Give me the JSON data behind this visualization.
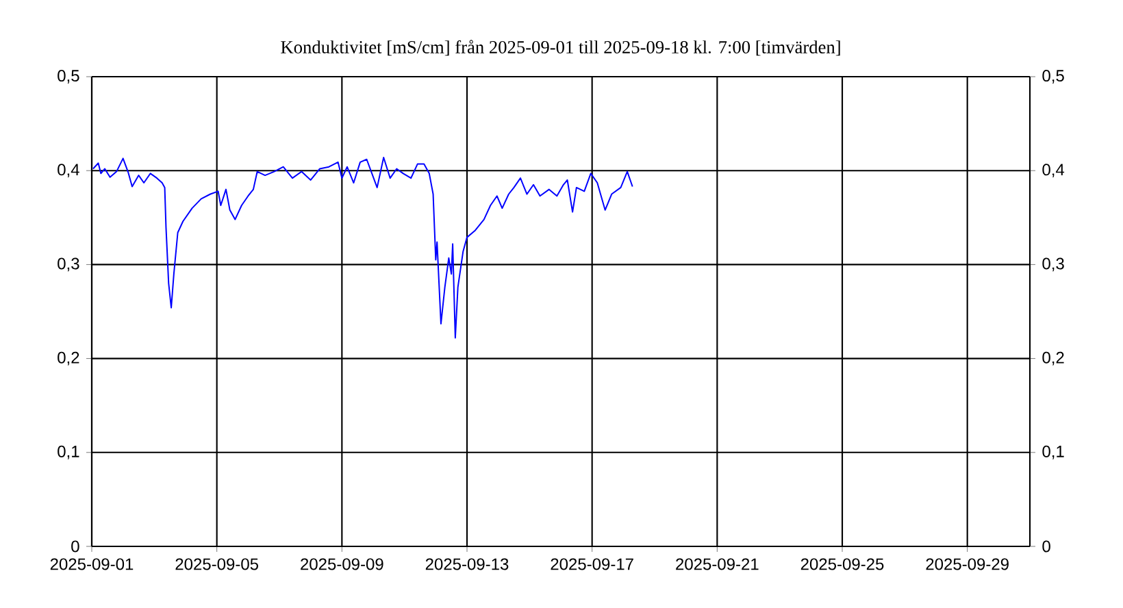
{
  "chart_data": {
    "type": "line",
    "title": "Konduktivitet [mS/cm] från 2025-09-01 till 2025-09-18 kl. 7:00 [timvärden]",
    "x": [
      "2025-09-01T01:00",
      "2025-09-01T05:00",
      "2025-09-01T07:00",
      "2025-09-01T10:00",
      "2025-09-01T14:00",
      "2025-09-01T19:00",
      "2025-09-02T00:00",
      "2025-09-02T04:00",
      "2025-09-02T07:00",
      "2025-09-02T12:00",
      "2025-09-02T16:00",
      "2025-09-02T21:00",
      "2025-09-03T02:00",
      "2025-09-03T06:00",
      "2025-09-03T08:00",
      "2025-09-03T09:00",
      "2025-09-03T11:00",
      "2025-09-03T13:00",
      "2025-09-03T15:00",
      "2025-09-03T18:00",
      "2025-09-03T22:00",
      "2025-09-04T05:00",
      "2025-09-04T12:00",
      "2025-09-04T19:00",
      "2025-09-05T01:00",
      "2025-09-05T03:00",
      "2025-09-05T07:00",
      "2025-09-05T10:00",
      "2025-09-05T14:00",
      "2025-09-05T19:00",
      "2025-09-06T00:00",
      "2025-09-06T04:00",
      "2025-09-06T07:00",
      "2025-09-06T13:00",
      "2025-09-06T20:00",
      "2025-09-07T03:00",
      "2025-09-07T10:00",
      "2025-09-07T17:00",
      "2025-09-08T00:00",
      "2025-09-08T07:00",
      "2025-09-08T14:00",
      "2025-09-08T21:00",
      "2025-09-09T00:00",
      "2025-09-09T04:00",
      "2025-09-09T09:00",
      "2025-09-09T14:00",
      "2025-09-09T19:00",
      "2025-09-10T03:00",
      "2025-09-10T08:00",
      "2025-09-10T13:00",
      "2025-09-10T18:00",
      "2025-09-10T23:00",
      "2025-09-11T05:00",
      "2025-09-11T10:00",
      "2025-09-11T15:00",
      "2025-09-11T19:00",
      "2025-09-11T22:00",
      "2025-09-12T00:00",
      "2025-09-12T01:00",
      "2025-09-12T04:00",
      "2025-09-12T07:00",
      "2025-09-12T10:00",
      "2025-09-12T12:00",
      "2025-09-12T13:00",
      "2025-09-12T15:00",
      "2025-09-12T17:00",
      "2025-09-12T21:00",
      "2025-09-13T00:00",
      "2025-09-13T06:00",
      "2025-09-13T13:00",
      "2025-09-13T18:00",
      "2025-09-13T23:00",
      "2025-09-14T03:00",
      "2025-09-14T08:00",
      "2025-09-14T12:00",
      "2025-09-14T17:00",
      "2025-09-14T22:00",
      "2025-09-15T03:00",
      "2025-09-15T08:00",
      "2025-09-15T15:00",
      "2025-09-15T21:00",
      "2025-09-16T02:00",
      "2025-09-16T05:00",
      "2025-09-16T09:00",
      "2025-09-16T12:00",
      "2025-09-16T18:00",
      "2025-09-16T23:00",
      "2025-09-17T04:00",
      "2025-09-17T10:00",
      "2025-09-17T15:00",
      "2025-09-17T22:00",
      "2025-09-18T03:00",
      "2025-09-18T07:00"
    ],
    "series": [
      {
        "color": "#0000ff",
        "values": [
          0.402,
          0.408,
          0.397,
          0.402,
          0.393,
          0.399,
          0.413,
          0.398,
          0.383,
          0.395,
          0.387,
          0.397,
          0.392,
          0.387,
          0.382,
          0.339,
          0.28,
          0.254,
          0.29,
          0.334,
          0.346,
          0.36,
          0.37,
          0.375,
          0.378,
          0.363,
          0.38,
          0.358,
          0.348,
          0.363,
          0.373,
          0.38,
          0.399,
          0.395,
          0.399,
          0.404,
          0.392,
          0.399,
          0.39,
          0.402,
          0.404,
          0.409,
          0.392,
          0.404,
          0.387,
          0.409,
          0.412,
          0.382,
          0.414,
          0.392,
          0.402,
          0.397,
          0.392,
          0.407,
          0.407,
          0.397,
          0.375,
          0.305,
          0.324,
          0.237,
          0.276,
          0.307,
          0.29,
          0.322,
          0.222,
          0.276,
          0.314,
          0.329,
          0.336,
          0.348,
          0.363,
          0.373,
          0.36,
          0.375,
          0.382,
          0.392,
          0.375,
          0.385,
          0.373,
          0.38,
          0.373,
          0.385,
          0.39,
          0.356,
          0.382,
          0.378,
          0.397,
          0.387,
          0.358,
          0.375,
          0.382,
          0.399,
          0.383
        ]
      }
    ],
    "xlim": [
      "2025-09-01",
      "2025-10-01"
    ],
    "xticks": [
      "2025-09-01",
      "2025-09-05",
      "2025-09-09",
      "2025-09-13",
      "2025-09-17",
      "2025-09-21",
      "2025-09-25",
      "2025-09-29"
    ],
    "ylim": [
      0,
      0.5
    ],
    "yticks": [
      0,
      {
        "value": 0.1,
        "label": "0,1"
      },
      {
        "value": 0.2,
        "label": "0,2"
      },
      {
        "value": 0.3,
        "label": "0,3"
      },
      {
        "value": 0.4,
        "label": "0,4"
      },
      {
        "value": 0.5,
        "label": "0,5"
      }
    ],
    "y2lim": [
      0,
      0.5
    ],
    "y2ticks": [
      0,
      {
        "value": 0.1,
        "label": "0,1"
      },
      {
        "value": 0.2,
        "label": "0,2"
      },
      {
        "value": 0.3,
        "label": "0,3"
      },
      {
        "value": 0.4,
        "label": "0,4"
      },
      {
        "value": 0.5,
        "label": "0,5"
      }
    ],
    "grid": true,
    "marker": "none",
    "line_style": "solid"
  }
}
